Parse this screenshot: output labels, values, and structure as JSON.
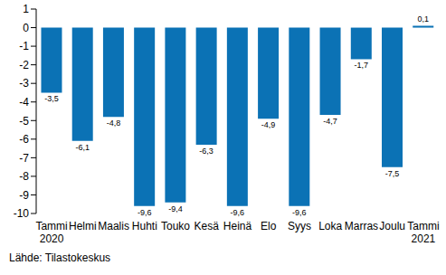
{
  "chart_data": {
    "type": "bar",
    "categories": [
      "Tammi\n2020",
      "Helmi",
      "Maalis",
      "Huhti",
      "Touko",
      "Kesä",
      "Heinä",
      "Elo",
      "Syys",
      "Loka",
      "Marras",
      "Joulu",
      "Tammi\n2021"
    ],
    "values": [
      -3.5,
      -6.1,
      -4.8,
      -9.6,
      -9.4,
      -6.3,
      -9.6,
      -4.9,
      -9.6,
      -4.7,
      -1.7,
      -7.5,
      0.1
    ],
    "value_labels": [
      "-3,5",
      "-6,1",
      "-4,8",
      "-9,6",
      "-9,4",
      "-6,3",
      "-9,6",
      "-4,9",
      "-9,6",
      "-4,7",
      "-1,7",
      "-7,5",
      "0,1"
    ],
    "color": "#0b72b5",
    "ylim": [
      -10,
      1
    ],
    "yticks": [
      -10,
      -9,
      -8,
      -7,
      -6,
      -5,
      -4,
      -3,
      -2,
      -1,
      0,
      1
    ],
    "grid": false,
    "data_labels": true,
    "annotations": [
      "Lähde: Tilastokeskus"
    ]
  }
}
